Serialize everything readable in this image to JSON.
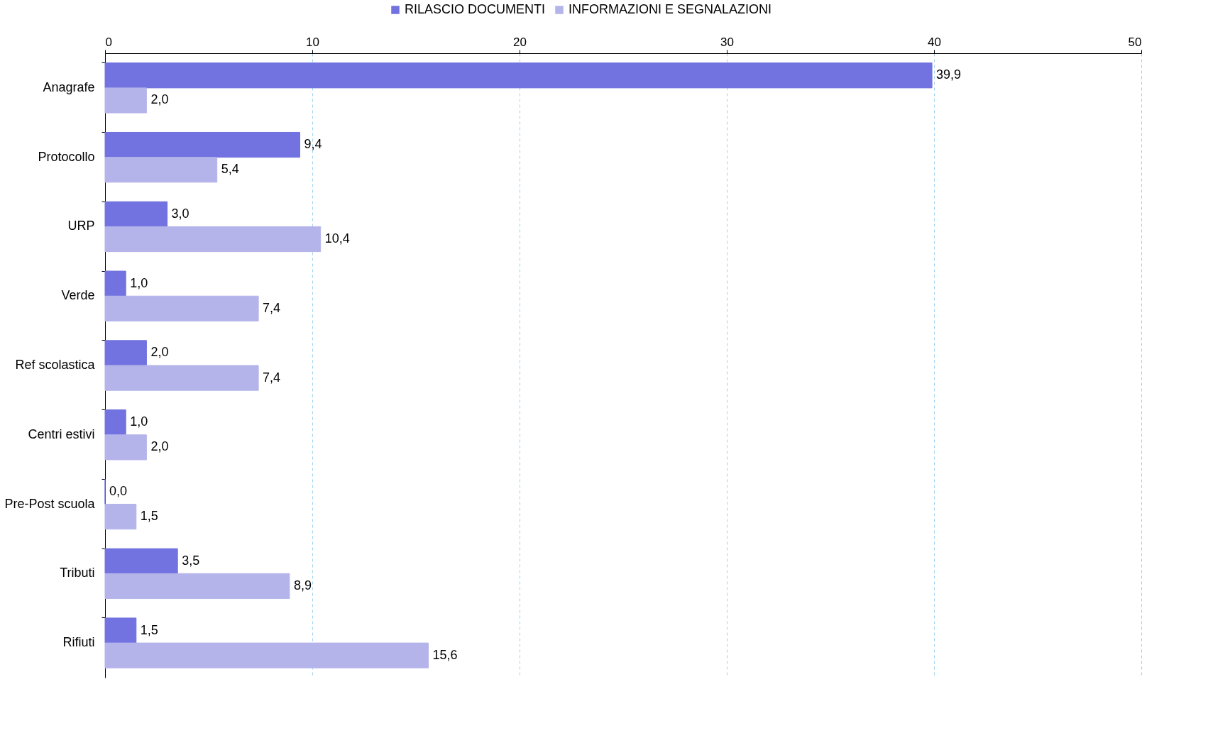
{
  "chart_data": {
    "type": "bar",
    "orientation": "horizontal",
    "categories": [
      "Anagrafe",
      "Protocollo",
      "URP",
      "Verde",
      "Ref scolastica",
      "Centri estivi",
      "Pre-Post scuola",
      "Tributi",
      "Rifiuti"
    ],
    "series": [
      {
        "name": "RILASCIO DOCUMENTI",
        "color": "#7272e0",
        "values": [
          39.9,
          9.4,
          3.0,
          1.0,
          2.0,
          1.0,
          0.0,
          3.5,
          1.5
        ],
        "value_labels": [
          "39,9",
          "9,4",
          "3,0",
          "1,0",
          "2,0",
          "1,0",
          "0,0",
          "3,5",
          "1,5"
        ]
      },
      {
        "name": "INFORMAZIONI E SEGNALAZIONI",
        "color": "#b4b4ea",
        "values": [
          2.0,
          5.4,
          10.4,
          7.4,
          7.4,
          2.0,
          1.5,
          8.9,
          15.6
        ],
        "value_labels": [
          "2,0",
          "5,4",
          "10,4",
          "7,4",
          "7,4",
          "2,0",
          "1,5",
          "8,9",
          "15,6"
        ]
      }
    ],
    "xlim": [
      0,
      50
    ],
    "xticks": [
      0,
      10,
      20,
      30,
      40,
      50
    ],
    "grid": "x",
    "legend": "top"
  }
}
